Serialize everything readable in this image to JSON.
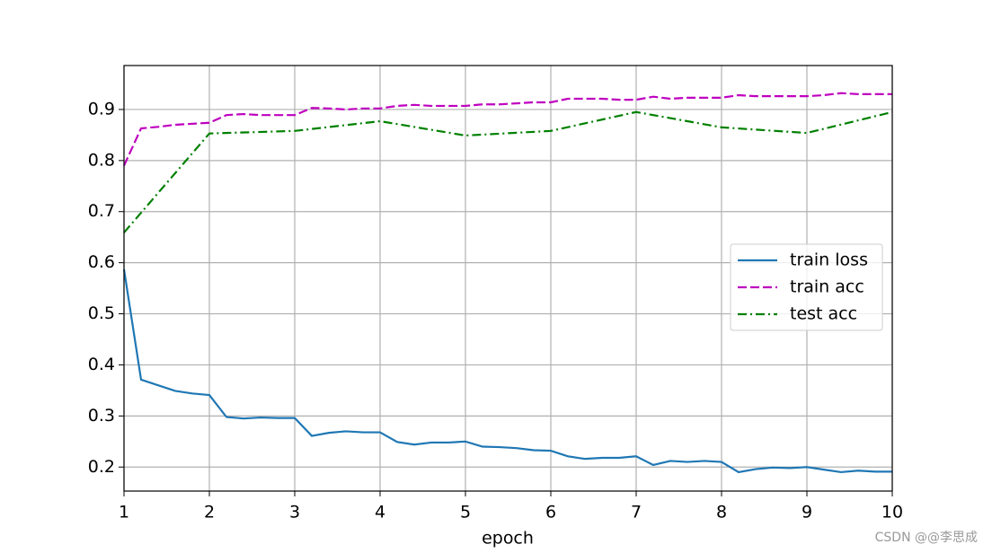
{
  "chart_data": {
    "type": "line",
    "xlabel": "epoch",
    "xlim": [
      1,
      10
    ],
    "xticks": [
      1,
      2,
      3,
      4,
      5,
      6,
      7,
      8,
      9,
      10
    ],
    "ylim": [
      0.153,
      0.986
    ],
    "yticks": [
      0.2,
      0.3,
      0.4,
      0.5,
      0.6,
      0.7,
      0.8,
      0.9
    ],
    "grid": true,
    "legend": "center right",
    "series": [
      {
        "name": "train loss",
        "color": "#1f77b4",
        "linestyle": "-",
        "x": [
          1,
          1.2,
          1.4,
          1.6,
          1.8,
          2,
          2.2,
          2.4,
          2.6,
          2.8,
          3,
          3.2,
          3.4,
          3.6,
          3.8,
          4,
          4.2,
          4.4,
          4.6,
          4.8,
          5,
          5.2,
          5.4,
          5.6,
          5.8,
          6,
          6.2,
          6.4,
          6.6,
          6.8,
          7,
          7.2,
          7.4,
          7.6,
          7.8,
          8,
          8.2,
          8.4,
          8.6,
          8.8,
          9,
          9.2,
          9.4,
          9.6,
          9.8,
          10
        ],
        "values": [
          0.587,
          0.371,
          0.36,
          0.349,
          0.344,
          0.341,
          0.298,
          0.295,
          0.297,
          0.296,
          0.296,
          0.261,
          0.267,
          0.27,
          0.268,
          0.268,
          0.249,
          0.244,
          0.248,
          0.248,
          0.25,
          0.24,
          0.239,
          0.237,
          0.233,
          0.232,
          0.221,
          0.216,
          0.218,
          0.218,
          0.221,
          0.204,
          0.212,
          0.21,
          0.212,
          0.21,
          0.19,
          0.196,
          0.199,
          0.198,
          0.2,
          0.195,
          0.19,
          0.193,
          0.191,
          0.191
        ]
      },
      {
        "name": "train acc",
        "color": "#bf00bf",
        "linestyle": "--",
        "x": [
          1,
          1.2,
          1.4,
          1.6,
          1.8,
          2,
          2.2,
          2.4,
          2.6,
          2.8,
          3,
          3.2,
          3.4,
          3.6,
          3.8,
          4,
          4.2,
          4.4,
          4.6,
          4.8,
          5,
          5.2,
          5.4,
          5.6,
          5.8,
          6,
          6.2,
          6.4,
          6.6,
          6.8,
          7,
          7.2,
          7.4,
          7.6,
          7.8,
          8,
          8.2,
          8.4,
          8.6,
          8.8,
          9,
          9.2,
          9.4,
          9.6,
          9.8,
          10
        ],
        "values": [
          0.79,
          0.863,
          0.866,
          0.87,
          0.872,
          0.874,
          0.889,
          0.891,
          0.889,
          0.889,
          0.889,
          0.903,
          0.902,
          0.9,
          0.902,
          0.902,
          0.907,
          0.909,
          0.907,
          0.907,
          0.907,
          0.91,
          0.91,
          0.912,
          0.914,
          0.914,
          0.921,
          0.921,
          0.921,
          0.919,
          0.919,
          0.925,
          0.921,
          0.923,
          0.923,
          0.923,
          0.928,
          0.926,
          0.926,
          0.926,
          0.926,
          0.928,
          0.932,
          0.93,
          0.93,
          0.93
        ]
      },
      {
        "name": "test acc",
        "color": "#008000",
        "linestyle": "-.",
        "x": [
          1,
          2,
          3,
          4,
          5,
          6,
          7,
          8,
          9,
          10
        ],
        "values": [
          0.659,
          0.853,
          0.858,
          0.877,
          0.849,
          0.858,
          0.895,
          0.865,
          0.854,
          0.895
        ]
      }
    ],
    "watermark": "CSDN @@李思成"
  }
}
